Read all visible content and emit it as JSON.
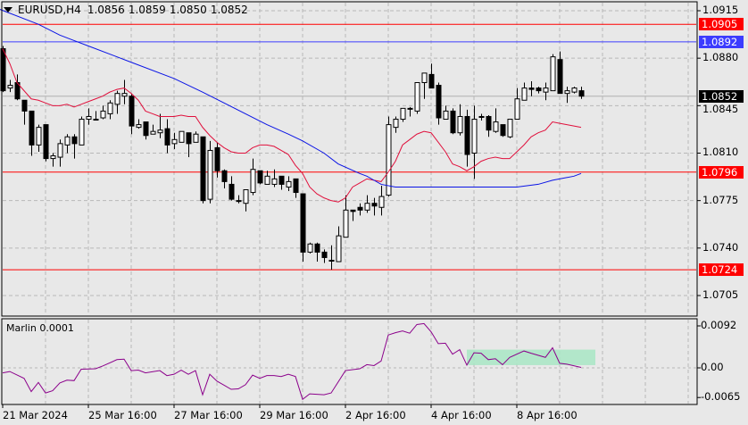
{
  "header": {
    "symbol": "EURUSD,H4",
    "open": "1.0856",
    "high": "1.0859",
    "low": "1.0850",
    "close": "1.0852",
    "menu_icon": "triangle-down-icon"
  },
  "indicator": {
    "label": "Marlin 0.0001",
    "axis_labels": [
      "0.0092",
      "0.00",
      "-0.0065"
    ]
  },
  "colors": {
    "background": "#e8e8e8",
    "level_line": "#ff0000",
    "blue_line": "#3c3cff",
    "fast_ma": "#e0103c",
    "slow_ma": "#0a14e6",
    "marlin": "#8b008b",
    "zone": "#a8e6c4",
    "bid_tag": "#000000"
  },
  "price_axis": [
    "1.0915",
    "1.0880",
    "1.0845",
    "1.0810",
    "1.0775",
    "1.0740",
    "1.0705"
  ],
  "levels": [
    {
      "price": 1.0905,
      "label": "1.0905",
      "color": "#ff0000"
    },
    {
      "price": 1.0892,
      "label": "1.0892",
      "color": "#3c3cff"
    },
    {
      "price": 1.0796,
      "label": "1.0796",
      "color": "#ff0000"
    },
    {
      "price": 1.0724,
      "label": "1.0724",
      "color": "#ff0000"
    }
  ],
  "bid": {
    "price": 1.0852,
    "label": "1.0852"
  },
  "time_axis": [
    "21 Mar 2024",
    "25 Mar 16:00",
    "27 Mar 16:00",
    "29 Mar 16:00",
    "2 Apr 16:00",
    "4 Apr 16:00",
    "8 Apr 16:00"
  ],
  "chart_data": {
    "type": "candlestick",
    "ylim": [
      1.07,
      1.092
    ],
    "candles_ohlc": [
      [
        1.0887,
        1.0889,
        1.0855,
        1.0856
      ],
      [
        1.0858,
        1.0864,
        1.0855,
        1.086
      ],
      [
        1.0862,
        1.0868,
        1.0849,
        1.085
      ],
      [
        1.0849,
        1.0849,
        1.0831,
        1.0841
      ],
      [
        1.0841,
        1.0841,
        1.0808,
        1.0816
      ],
      [
        1.0816,
        1.0831,
        1.0811,
        1.0829
      ],
      [
        1.0831,
        1.0831,
        1.0804,
        1.0806
      ],
      [
        1.0806,
        1.081,
        1.08,
        1.0808
      ],
      [
        1.0807,
        1.082,
        1.08,
        1.0817
      ],
      [
        1.0816,
        1.0824,
        1.081,
        1.0822
      ],
      [
        1.0822,
        1.0824,
        1.0806,
        1.0817
      ],
      [
        1.0816,
        1.0837,
        1.0816,
        1.0835
      ],
      [
        1.0835,
        1.0843,
        1.0831,
        1.0837
      ],
      [
        1.0835,
        1.0841,
        1.0835,
        1.0835
      ],
      [
        1.0836,
        1.0845,
        1.0835,
        1.0841
      ],
      [
        1.0839,
        1.0849,
        1.0835,
        1.0847
      ],
      [
        1.0846,
        1.0856,
        1.0839,
        1.0854
      ],
      [
        1.0852,
        1.0864,
        1.0846,
        1.0854
      ],
      [
        1.0852,
        1.0854,
        1.0824,
        1.083
      ],
      [
        1.0829,
        1.0835,
        1.0828,
        1.0831
      ],
      [
        1.0833,
        1.0833,
        1.082,
        1.0823
      ],
      [
        1.0824,
        1.0831,
        1.0824,
        1.0826
      ],
      [
        1.0825,
        1.0839,
        1.0821,
        1.0827
      ],
      [
        1.0828,
        1.0835,
        1.081,
        1.0816
      ],
      [
        1.0817,
        1.0825,
        1.0813,
        1.082
      ],
      [
        1.0818,
        1.0826,
        1.0818,
        1.0826
      ],
      [
        1.0825,
        1.0825,
        1.0807,
        1.0817
      ],
      [
        1.0818,
        1.0826,
        1.0818,
        1.0824
      ],
      [
        1.0822,
        1.0822,
        1.0773,
        1.0775
      ],
      [
        1.0776,
        1.0819,
        1.0773,
        1.0812
      ],
      [
        1.0814,
        1.0818,
        1.0792,
        1.0797
      ],
      [
        1.0797,
        1.0798,
        1.0784,
        1.0789
      ],
      [
        1.0787,
        1.0793,
        1.0775,
        1.0776
      ],
      [
        1.0775,
        1.0779,
        1.0773,
        1.0775
      ],
      [
        1.0773,
        1.0783,
        1.0767,
        1.0783
      ],
      [
        1.0781,
        1.0806,
        1.0779,
        1.0798
      ],
      [
        1.0797,
        1.0797,
        1.0787,
        1.0788
      ],
      [
        1.0787,
        1.0797,
        1.0787,
        1.0793
      ],
      [
        1.0787,
        1.0798,
        1.0785,
        1.0791
      ],
      [
        1.0793,
        1.0793,
        1.0783,
        1.0787
      ],
      [
        1.0785,
        1.0793,
        1.0782,
        1.0789
      ],
      [
        1.0791,
        1.0791,
        1.0777,
        1.0781
      ],
      [
        1.078,
        1.078,
        1.073,
        1.0737
      ],
      [
        1.0737,
        1.0744,
        1.0736,
        1.0743
      ],
      [
        1.0743,
        1.0744,
        1.073,
        1.0737
      ],
      [
        1.0737,
        1.0739,
        1.0729,
        1.0733
      ],
      [
        1.0731,
        1.0742,
        1.0724,
        1.0731
      ],
      [
        1.073,
        1.0756,
        1.073,
        1.0749
      ],
      [
        1.0748,
        1.0779,
        1.0748,
        1.0768
      ],
      [
        1.0768,
        1.0768,
        1.076,
        1.0767
      ],
      [
        1.077,
        1.0773,
        1.0764,
        1.0768
      ],
      [
        1.0768,
        1.0779,
        1.0766,
        1.0773
      ],
      [
        1.0773,
        1.0777,
        1.0764,
        1.0771
      ],
      [
        1.077,
        1.0786,
        1.0764,
        1.0778
      ],
      [
        1.0779,
        1.0837,
        1.0778,
        1.0831
      ],
      [
        1.0829,
        1.0837,
        1.0825,
        1.0835
      ],
      [
        1.0835,
        1.0843,
        1.0833,
        1.0843
      ],
      [
        1.0843,
        1.0844,
        1.0837,
        1.0843
      ],
      [
        1.0841,
        1.0862,
        1.0839,
        1.0862
      ],
      [
        1.0862,
        1.0869,
        1.085,
        1.0869
      ],
      [
        1.0868,
        1.0876,
        1.0858,
        1.0858
      ],
      [
        1.086,
        1.0862,
        1.0831,
        1.0836
      ],
      [
        1.0835,
        1.0845,
        1.0835,
        1.0841
      ],
      [
        1.0841,
        1.0843,
        1.0824,
        1.0825
      ],
      [
        1.0825,
        1.0846,
        1.0823,
        1.0837
      ],
      [
        1.0837,
        1.0842,
        1.08,
        1.0809
      ],
      [
        1.081,
        1.0845,
        1.0791,
        1.0835
      ],
      [
        1.0837,
        1.0839,
        1.0834,
        1.0837
      ],
      [
        1.0837,
        1.0838,
        1.0822,
        1.0827
      ],
      [
        1.0826,
        1.0843,
        1.0825,
        1.0833
      ],
      [
        1.0831,
        1.0831,
        1.0822,
        1.0823
      ],
      [
        1.0822,
        1.0835,
        1.0821,
        1.0835
      ],
      [
        1.0835,
        1.0858,
        1.0835,
        1.085
      ],
      [
        1.0849,
        1.0862,
        1.0849,
        1.0858
      ],
      [
        1.0858,
        1.0863,
        1.0852,
        1.0857
      ],
      [
        1.0858,
        1.0859,
        1.0854,
        1.0856
      ],
      [
        1.0855,
        1.0862,
        1.0849,
        1.0858
      ],
      [
        1.0856,
        1.0883,
        1.0856,
        1.0881
      ],
      [
        1.0879,
        1.0885,
        1.0854,
        1.0854
      ],
      [
        1.0854,
        1.0859,
        1.0847,
        1.0856
      ],
      [
        1.0855,
        1.0859,
        1.0854,
        1.0858
      ],
      [
        1.0856,
        1.0859,
        1.085,
        1.0852
      ]
    ],
    "fast_ma": [
      1.0887,
      1.0876,
      1.0862,
      1.0856,
      1.085,
      1.0849,
      1.0847,
      1.0845,
      1.0845,
      1.0846,
      1.0844,
      1.0846,
      1.0848,
      1.085,
      1.0852,
      1.0855,
      1.0857,
      1.0858,
      1.0854,
      1.0849,
      1.0841,
      1.0839,
      1.0837,
      1.0837,
      1.0837,
      1.0838,
      1.0837,
      1.0837,
      1.0829,
      1.0823,
      1.0818,
      1.0814,
      1.0811,
      1.081,
      1.081,
      1.0814,
      1.0816,
      1.0816,
      1.0815,
      1.0812,
      1.0809,
      1.0801,
      1.0795,
      1.0785,
      1.078,
      1.0777,
      1.0775,
      1.0774,
      1.0777,
      1.0785,
      1.0788,
      1.0791,
      1.079,
      1.0789,
      1.0796,
      1.0804,
      1.0816,
      1.082,
      1.0824,
      1.0826,
      1.0825,
      1.0818,
      1.0811,
      1.0802,
      1.08,
      1.0797,
      1.08,
      1.0804,
      1.0806,
      1.0807,
      1.0806,
      1.0806,
      1.0811,
      1.0816,
      1.0822,
      1.0825,
      1.0827,
      1.0833,
      1.0832,
      1.0831,
      1.083,
      1.0829
    ],
    "slow_ma": [
      [
        -0.4,
        1.0916
      ],
      [
        5,
        1.0905
      ],
      [
        8,
        1.0897
      ],
      [
        10,
        1.0893
      ],
      [
        12,
        1.0889
      ],
      [
        18,
        1.0877
      ],
      [
        24,
        1.0865
      ],
      [
        28,
        1.0855
      ],
      [
        37,
        1.0831
      ],
      [
        40,
        1.0824
      ],
      [
        42,
        1.0819
      ],
      [
        45,
        1.081
      ],
      [
        47,
        1.0802
      ],
      [
        50,
        1.0795
      ],
      [
        51,
        1.0793
      ],
      [
        52,
        1.079
      ],
      [
        53,
        1.0787
      ],
      [
        55,
        1.0785
      ],
      [
        61,
        1.0785
      ],
      [
        72,
        1.0785
      ],
      [
        75,
        1.0787
      ],
      [
        77,
        1.079
      ],
      [
        80,
        1.0793
      ],
      [
        81,
        1.0795
      ]
    ],
    "marlin": [
      [
        0,
        -0.0011
      ],
      [
        1,
        -0.0008
      ],
      [
        3,
        -0.0023
      ],
      [
        4,
        -0.0052
      ],
      [
        5,
        -0.0032
      ],
      [
        6,
        -0.0055
      ],
      [
        7,
        -0.005
      ],
      [
        8,
        -0.0033
      ],
      [
        9,
        -0.0027
      ],
      [
        10,
        -0.0028
      ],
      [
        11,
        -0.0003
      ],
      [
        13,
        -0.0002
      ],
      [
        14,
        0.0004
      ],
      [
        16,
        0.0018
      ],
      [
        17,
        0.0019
      ],
      [
        18,
        -0.0006
      ],
      [
        19,
        -0.0005
      ],
      [
        20,
        -0.0011
      ],
      [
        22,
        -0.0006
      ],
      [
        23,
        -0.0017
      ],
      [
        24,
        -0.0014
      ],
      [
        25,
        -0.0005
      ],
      [
        26,
        -0.0014
      ],
      [
        27,
        -0.0006
      ],
      [
        28,
        -0.0059
      ],
      [
        29,
        -0.0014
      ],
      [
        30,
        -0.0029
      ],
      [
        32,
        -0.0047
      ],
      [
        33,
        -0.0046
      ],
      [
        34,
        -0.0037
      ],
      [
        35,
        -0.0016
      ],
      [
        36,
        -0.0023
      ],
      [
        37,
        -0.0017
      ],
      [
        38,
        -0.0017
      ],
      [
        39,
        -0.0019
      ],
      [
        40,
        -0.0014
      ],
      [
        41,
        -0.0019
      ],
      [
        42,
        -0.0069
      ],
      [
        43,
        -0.0057
      ],
      [
        45,
        -0.0059
      ],
      [
        46,
        -0.0055
      ],
      [
        48,
        -0.0006
      ],
      [
        50,
        -0.0002
      ],
      [
        51,
        0.0007
      ],
      [
        52,
        0.0005
      ],
      [
        53,
        0.0015
      ],
      [
        54,
        0.0072
      ],
      [
        55,
        0.0077
      ],
      [
        56,
        0.0081
      ],
      [
        57,
        0.0076
      ],
      [
        58,
        0.0095
      ],
      [
        59,
        0.0097
      ],
      [
        60,
        0.0079
      ],
      [
        61,
        0.0053
      ],
      [
        62,
        0.0054
      ],
      [
        63,
        0.003
      ],
      [
        64,
        0.004
      ],
      [
        65,
        0.0006
      ],
      [
        66,
        0.0033
      ],
      [
        67,
        0.0032
      ],
      [
        68,
        0.0018
      ],
      [
        69,
        0.002
      ],
      [
        70,
        0.0007
      ],
      [
        71,
        0.0023
      ],
      [
        73,
        0.0037
      ],
      [
        74,
        0.0032
      ],
      [
        76,
        0.0023
      ],
      [
        77,
        0.0044
      ],
      [
        78,
        0.001
      ],
      [
        79,
        0.0008
      ],
      [
        81,
        0.0001
      ]
    ],
    "marlin_ylim": [
      -0.0065,
      0.0092
    ],
    "marlin_zone": {
      "from_bar": 65,
      "to_bar": 83,
      "low": 0.0006,
      "high": 0.004
    }
  }
}
